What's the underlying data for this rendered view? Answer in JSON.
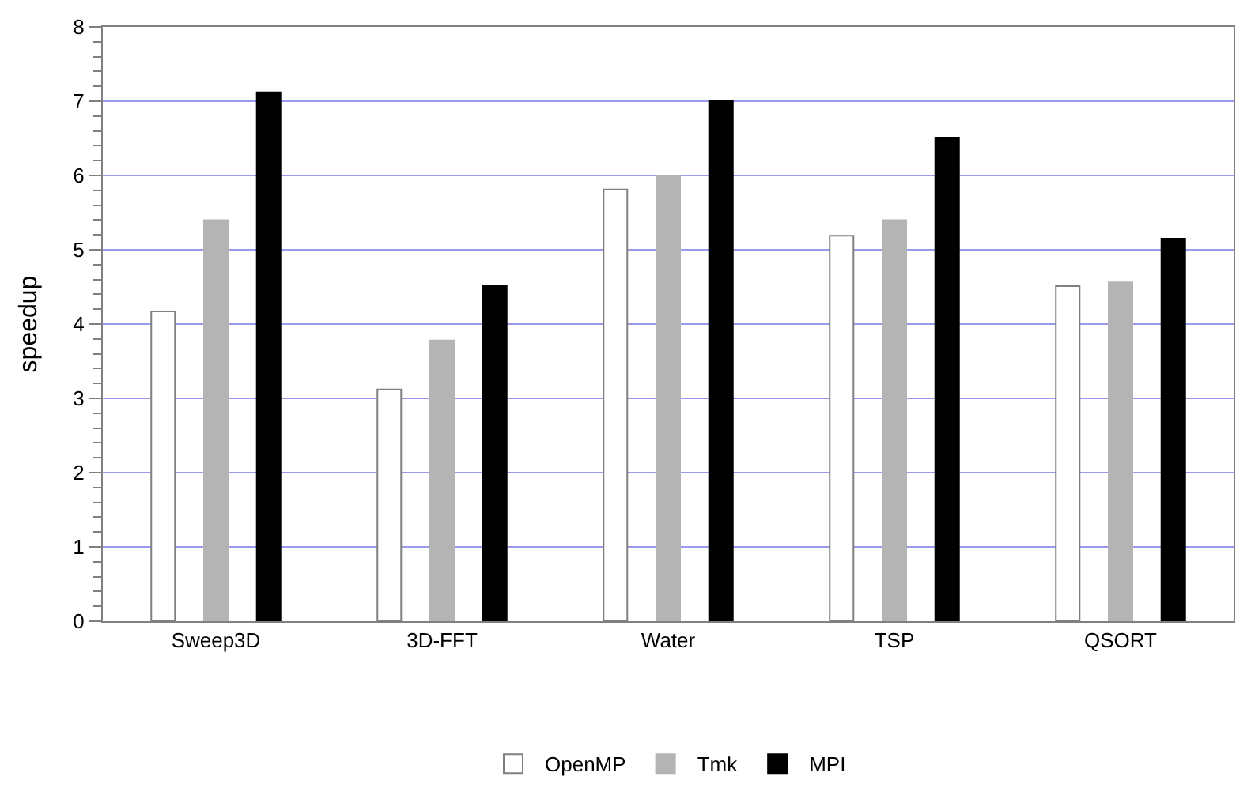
{
  "chart_data": {
    "type": "bar",
    "ylabel": "speedup",
    "categories": [
      "Sweep3D",
      "3D-FFT",
      "Water",
      "TSP",
      "QSORT"
    ],
    "series": [
      {
        "name": "OpenMP",
        "color": "#ffffff",
        "values": [
          4.17,
          3.12,
          5.81,
          5.19,
          4.51
        ]
      },
      {
        "name": "Tmk",
        "color": "#b4b4b4",
        "values": [
          5.4,
          3.78,
          6.0,
          5.4,
          4.56
        ]
      },
      {
        "name": "MPI",
        "color": "#000000",
        "values": [
          7.12,
          4.51,
          7.0,
          6.51,
          5.15
        ]
      }
    ],
    "ylim": [
      0,
      8
    ],
    "yticks": [
      0,
      1,
      2,
      3,
      4,
      5,
      6,
      7,
      8
    ],
    "grid": "y",
    "legend": "bottom"
  }
}
